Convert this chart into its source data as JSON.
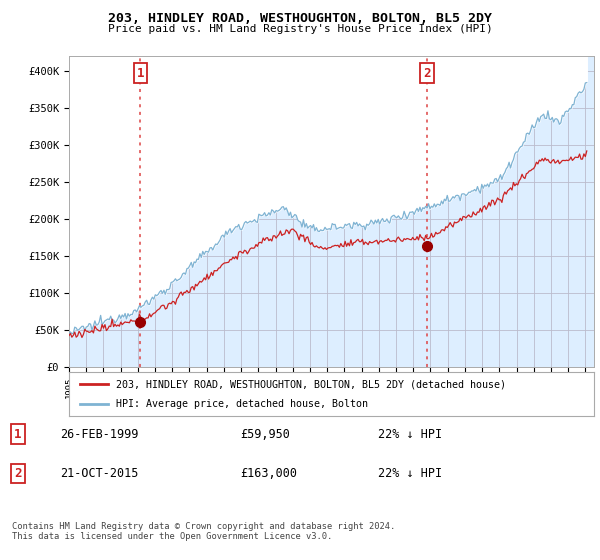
{
  "title": "203, HINDLEY ROAD, WESTHOUGHTON, BOLTON, BL5 2DY",
  "subtitle": "Price paid vs. HM Land Registry's House Price Index (HPI)",
  "ylabel_ticks": [
    "£0",
    "£50K",
    "£100K",
    "£150K",
    "£200K",
    "£250K",
    "£300K",
    "£350K",
    "£400K"
  ],
  "ytick_values": [
    0,
    50000,
    100000,
    150000,
    200000,
    250000,
    300000,
    350000,
    400000
  ],
  "ylim": [
    0,
    420000
  ],
  "xlim_start": 1995.0,
  "xlim_end": 2025.5,
  "purchase1": {
    "year": 1999.15,
    "price": 59950,
    "label": "1"
  },
  "purchase2": {
    "year": 2015.8,
    "price": 163000,
    "label": "2"
  },
  "vline_color": "#dd4444",
  "vline_style": ":",
  "marker_color": "#990000",
  "hpi_color": "#7fb3d3",
  "hpi_fill_color": "#ddeeff",
  "sale_line_color": "#cc2222",
  "legend_label1": "203, HINDLEY ROAD, WESTHOUGHTON, BOLTON, BL5 2DY (detached house)",
  "legend_label2": "HPI: Average price, detached house, Bolton",
  "note": "Contains HM Land Registry data © Crown copyright and database right 2024.\nThis data is licensed under the Open Government Licence v3.0.",
  "table_rows": [
    {
      "num": "1",
      "date": "26-FEB-1999",
      "price": "£59,950",
      "pct": "22% ↓ HPI"
    },
    {
      "num": "2",
      "date": "21-OCT-2015",
      "price": "£163,000",
      "pct": "22% ↓ HPI"
    }
  ],
  "xtick_years": [
    1995,
    1996,
    1997,
    1998,
    1999,
    2000,
    2001,
    2002,
    2003,
    2004,
    2005,
    2006,
    2007,
    2008,
    2009,
    2010,
    2011,
    2012,
    2013,
    2014,
    2015,
    2016,
    2017,
    2018,
    2019,
    2020,
    2021,
    2022,
    2023,
    2024,
    2025
  ],
  "background_color": "#ffffff",
  "plot_bg_color": "#ddeeff",
  "grid_color": "#bbbbcc"
}
